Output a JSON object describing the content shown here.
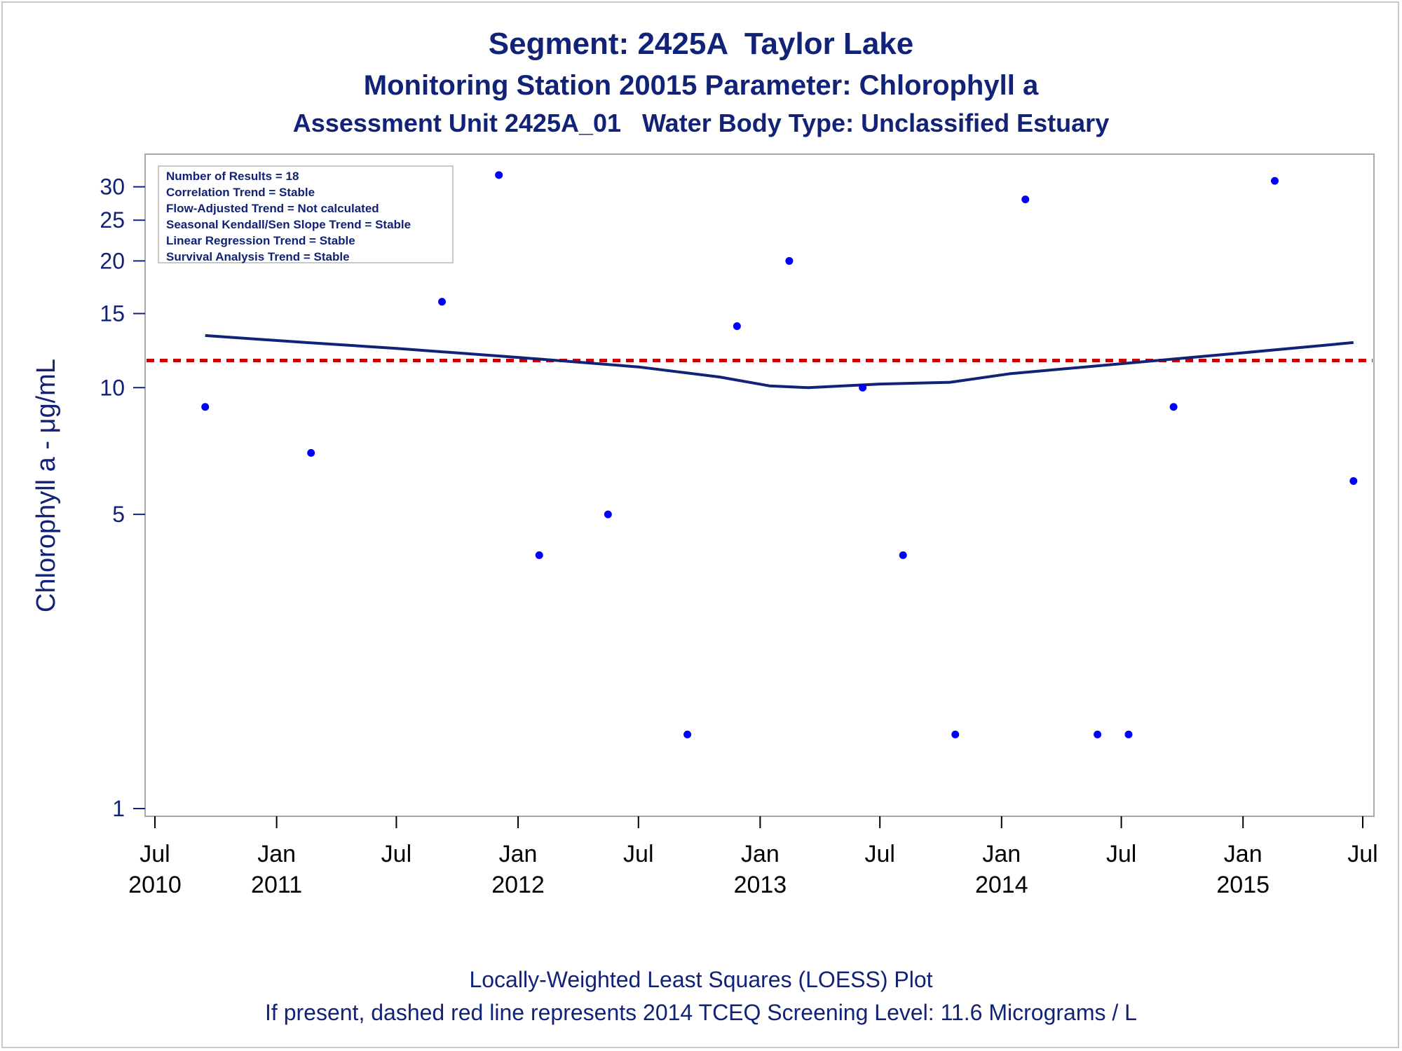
{
  "title": "Segment: 2425A  Taylor Lake",
  "subtitle1": "Monitoring Station 20015 Parameter: Chlorophyll a",
  "subtitle2": "Assessment Unit 2425A_01   Water Body Type: Unclassified Estuary",
  "footnote1": "Locally-Weighted Least Squares (LOESS) Plot",
  "footnote2": "If present, dashed red line represents 2014 TCEQ Screening Level: 11.6 Micrograms / L",
  "stats": [
    "Number of Results = 18",
    "Correlation Trend = Stable",
    "Flow-Adjusted Trend = Not calculated",
    "Seasonal Kendall/Sen Slope Trend = Stable",
    "Linear Regression Trend = Stable",
    "Survival Analysis Trend = Stable"
  ],
  "chart_data": {
    "type": "scatter",
    "ylabel": "Chlorophyll a -  μg/mL",
    "yscale": "log",
    "ylim": [
      1,
      34
    ],
    "yticks": [
      1,
      5,
      10,
      15,
      20,
      25,
      30
    ],
    "xlim": [
      "2010-07-01",
      "2015-07-01"
    ],
    "xticks": [
      {
        "date": "2010-07-01",
        "label": [
          "Jul",
          "2010"
        ]
      },
      {
        "date": "2011-01-01",
        "label": [
          "Jan",
          "2011"
        ]
      },
      {
        "date": "2011-07-01",
        "label": [
          "Jul",
          ""
        ]
      },
      {
        "date": "2012-01-01",
        "label": [
          "Jan",
          "2012"
        ]
      },
      {
        "date": "2012-07-01",
        "label": [
          "Jul",
          ""
        ]
      },
      {
        "date": "2013-01-01",
        "label": [
          "Jan",
          "2013"
        ]
      },
      {
        "date": "2013-07-01",
        "label": [
          "Jul",
          ""
        ]
      },
      {
        "date": "2014-01-01",
        "label": [
          "Jan",
          "2014"
        ]
      },
      {
        "date": "2014-07-01",
        "label": [
          "Jul",
          ""
        ]
      },
      {
        "date": "2015-01-01",
        "label": [
          "Jan",
          "2015"
        ]
      },
      {
        "date": "2015-07-01",
        "label": [
          "Jul",
          ""
        ]
      }
    ],
    "points": [
      {
        "x": "2010-09-15",
        "y": 9
      },
      {
        "x": "2011-02-22",
        "y": 7
      },
      {
        "x": "2011-09-08",
        "y": 16
      },
      {
        "x": "2011-12-03",
        "y": 32
      },
      {
        "x": "2012-02-02",
        "y": 4
      },
      {
        "x": "2012-05-16",
        "y": 5
      },
      {
        "x": "2012-09-13",
        "y": 1.5
      },
      {
        "x": "2012-11-27",
        "y": 14
      },
      {
        "x": "2013-02-14",
        "y": 20
      },
      {
        "x": "2013-06-05",
        "y": 10
      },
      {
        "x": "2013-08-05",
        "y": 4
      },
      {
        "x": "2013-10-23",
        "y": 1.5
      },
      {
        "x": "2014-02-06",
        "y": 28
      },
      {
        "x": "2014-05-26",
        "y": 1.5
      },
      {
        "x": "2014-07-12",
        "y": 1.5
      },
      {
        "x": "2014-09-18",
        "y": 9
      },
      {
        "x": "2015-02-18",
        "y": 31
      },
      {
        "x": "2015-06-17",
        "y": 6
      }
    ],
    "loess": [
      {
        "x": "2010-09-15",
        "y": 13.3
      },
      {
        "x": "2011-02-15",
        "y": 12.8
      },
      {
        "x": "2011-07-01",
        "y": 12.4
      },
      {
        "x": "2012-01-01",
        "y": 11.8
      },
      {
        "x": "2012-07-01",
        "y": 11.2
      },
      {
        "x": "2012-11-01",
        "y": 10.6
      },
      {
        "x": "2013-01-15",
        "y": 10.1
      },
      {
        "x": "2013-03-15",
        "y": 10.0
      },
      {
        "x": "2013-07-01",
        "y": 10.2
      },
      {
        "x": "2013-10-15",
        "y": 10.3
      },
      {
        "x": "2014-01-15",
        "y": 10.8
      },
      {
        "x": "2014-07-01",
        "y": 11.4
      },
      {
        "x": "2015-01-01",
        "y": 12.1
      },
      {
        "x": "2015-06-17",
        "y": 12.8
      }
    ],
    "screening_level": {
      "y": 11.6
    },
    "colors": {
      "points": "#0000ff",
      "loess": "#112277",
      "screening": "#cc0000",
      "axis": "#112277"
    }
  }
}
